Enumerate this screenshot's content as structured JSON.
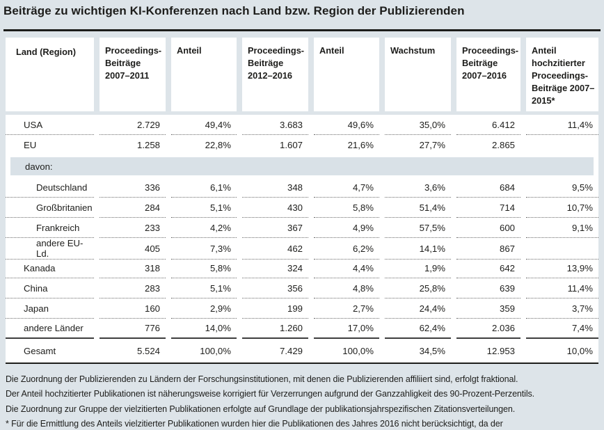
{
  "title": "Beiträge zu wichtigen KI-Konferenzen nach Land bzw. Region der Publizierenden",
  "table": {
    "columns": [
      "Land (Region)",
      "Proceedings-Beiträge 2007–2011",
      "Anteil",
      "Proceedings-Beiträge 2012–2016",
      "Anteil",
      "Wachstum",
      "Proceedings-Beiträge 2007–2016",
      "Anteil hochzitierter Proceedings-Beiträge 2007–2015*"
    ],
    "group_label": "davon:",
    "rows": [
      {
        "label": "USA",
        "indent": false,
        "sep": "dotted",
        "values": [
          "2.729",
          "49,4%",
          "3.683",
          "49,6%",
          "35,0%",
          "6.412",
          "11,4%"
        ]
      },
      {
        "label": "EU",
        "indent": false,
        "sep": "none",
        "values": [
          "1.258",
          "22,8%",
          "1.607",
          "21,6%",
          "27,7%",
          "2.865",
          ""
        ]
      },
      {
        "type": "group",
        "label": "davon:"
      },
      {
        "label": "Deutschland",
        "indent": true,
        "sep": "dotted",
        "values": [
          "336",
          "6,1%",
          "348",
          "4,7%",
          "3,6%",
          "684",
          "9,5%"
        ]
      },
      {
        "label": "Großbritanien",
        "indent": true,
        "sep": "dotted",
        "values": [
          "284",
          "5,1%",
          "430",
          "5,8%",
          "51,4%",
          "714",
          "10,7%"
        ]
      },
      {
        "label": "Frankreich",
        "indent": true,
        "sep": "dotted",
        "values": [
          "233",
          "4,2%",
          "367",
          "4,9%",
          "57,5%",
          "600",
          "9,1%"
        ]
      },
      {
        "label": "andere EU-Ld.",
        "indent": true,
        "sep": "dotted",
        "values": [
          "405",
          "7,3%",
          "462",
          "6,2%",
          "14,1%",
          "867",
          ""
        ]
      },
      {
        "label": "Kanada",
        "indent": false,
        "sep": "dotted",
        "values": [
          "318",
          "5,8%",
          "324",
          "4,4%",
          "1,9%",
          "642",
          "13,9%"
        ]
      },
      {
        "label": "China",
        "indent": false,
        "sep": "dotted",
        "values": [
          "283",
          "5,1%",
          "356",
          "4,8%",
          "25,8%",
          "639",
          "11,4%"
        ]
      },
      {
        "label": "Japan",
        "indent": false,
        "sep": "dotted",
        "values": [
          "160",
          "2,9%",
          "199",
          "2,7%",
          "24,4%",
          "359",
          "3,7%"
        ]
      },
      {
        "label": "andere Länder",
        "indent": false,
        "sep": "solid",
        "values": [
          "776",
          "14,0%",
          "1.260",
          "17,0%",
          "62,4%",
          "2.036",
          "7,4%"
        ]
      },
      {
        "label": "Gesamt",
        "indent": false,
        "sep": "none",
        "total": true,
        "values": [
          "5.524",
          "100,0%",
          "7.429",
          "100,0%",
          "34,5%",
          "12.953",
          "10,0%"
        ]
      }
    ]
  },
  "footnotes": [
    "Die Zuordnung der Publizierenden zu Ländern der Forschungsinstitutionen, mit denen die Publizierenden affiliiert sind, erfolgt fraktional.",
    "Der Anteil hochzitierter Publikationen ist näherungsweise korrigiert für Verzerrungen aufgrund der Ganzzahligkeit des 90-Prozent-Perzentils.",
    "Die Zuordnung zur Gruppe der vielzitierten Publikationen erfolgte auf Grundlage der publikationsjahrspezifischen Zitationsverteilungen.",
    "* Für die Ermittlung des Anteils vielzitierter Publikationen wurden hier die Publikationen des Jahres 2016 nicht berücksichtigt, da der"
  ],
  "colors": {
    "page_background": "#dde4e9",
    "panel_background": "#ffffff",
    "group_row_background": "#d9e1e7",
    "text": "#1d1d1b",
    "rule": "#1d1d1b",
    "dotted_separator": "#6a6a6a",
    "solid_separator": "#3e3e3e"
  }
}
